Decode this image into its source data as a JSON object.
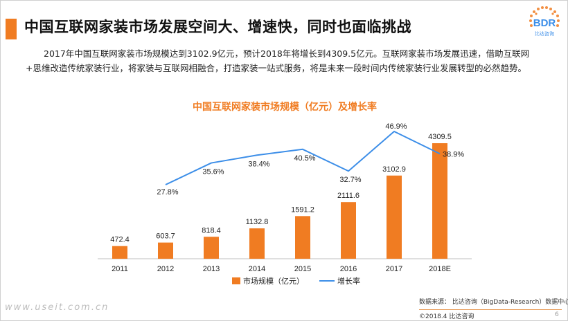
{
  "page": {
    "title": "中国互联网家装市场发展空间大、增速快，同时也面临挑战",
    "paragraph": "2017年中国互联网家装市场规模达到3102.9亿元，预计2018年将增长到4309.5亿元。互联网家装市场发展迅速，借助互联网+思维改造传统家装行业，将家装与互联网相融合，打造家装一站式服务，将是未来一段时间内传统家装行业发展转型的必然趋势。",
    "logo_text": "BDR",
    "logo_sub": "比达咨询",
    "watermark": "www.useit.com.cn",
    "source": "数据来源： 比达咨询（BigData-Research）数据中心",
    "copyright": "©2018.4   比达咨询",
    "page_number": "6"
  },
  "colors": {
    "accent": "#f07c22",
    "bar": "#f07c22",
    "line": "#3c8ee8",
    "title": "#f07c22"
  },
  "chart_data": {
    "type": "bar+line",
    "title": "中国互联网家装市场规模（亿元）及增长率",
    "categories": [
      "2011",
      "2012",
      "2013",
      "2014",
      "2015",
      "2016",
      "2017",
      "2018E"
    ],
    "series": [
      {
        "name": "市场规模（亿元）",
        "kind": "bar",
        "values": [
          472.4,
          603.7,
          818.4,
          1132.8,
          1591.2,
          2111.6,
          3102.9,
          4309.5
        ],
        "labels": [
          "472.4",
          "603.7",
          "818.4",
          "1132.8",
          "1591.2",
          "2111.6",
          "3102.9",
          "4309.5"
        ]
      },
      {
        "name": "增长率",
        "kind": "line",
        "values": [
          null,
          27.8,
          35.6,
          38.4,
          40.5,
          32.7,
          46.9,
          38.9
        ],
        "labels": [
          "",
          "27.8%",
          "35.6%",
          "38.4%",
          "40.5%",
          "32.7%",
          "46.9%",
          "38.9%"
        ]
      }
    ],
    "legend_position": "bottom",
    "grid": false
  }
}
